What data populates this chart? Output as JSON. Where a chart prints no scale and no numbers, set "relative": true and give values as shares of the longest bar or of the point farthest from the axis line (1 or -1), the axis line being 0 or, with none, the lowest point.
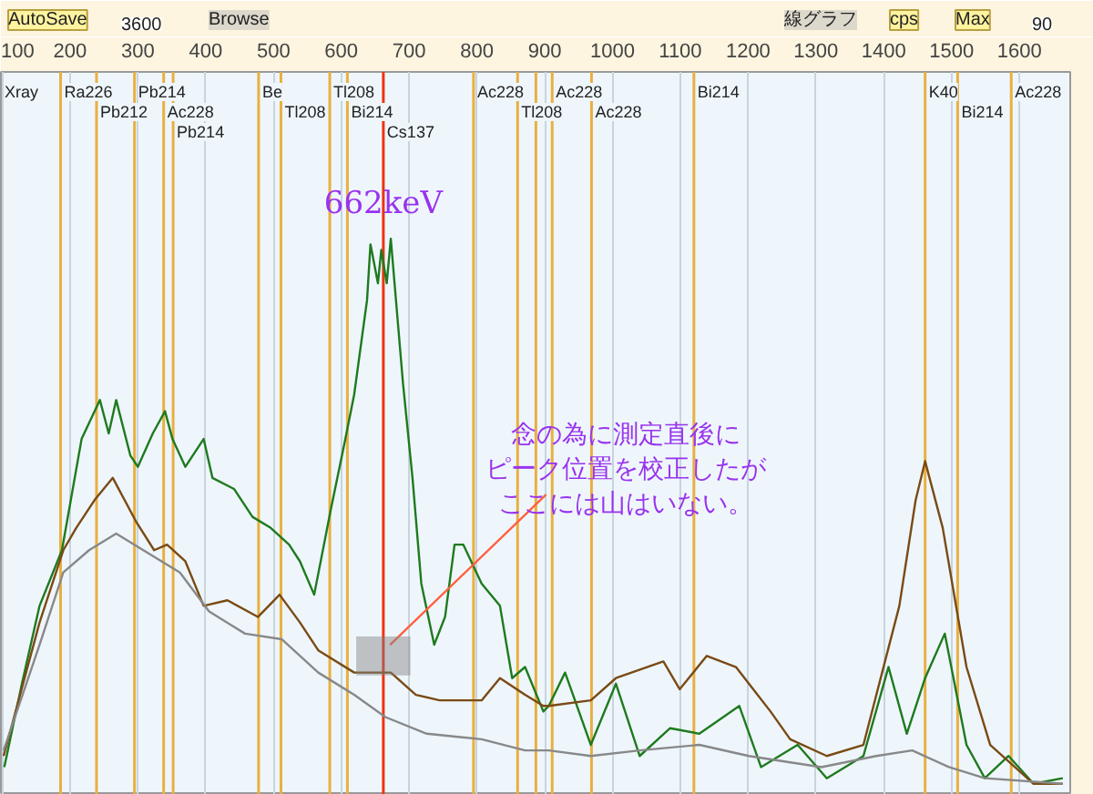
{
  "chart_data": {
    "type": "line",
    "relative": true,
    "xlim": [
      98,
      1675
    ],
    "xticks": [
      100,
      200,
      300,
      400,
      500,
      600,
      700,
      800,
      900,
      1000,
      1100,
      1200,
      1300,
      1400,
      1500,
      1600
    ],
    "grid": "x",
    "series": [
      {
        "color": "#1e7a1e",
        "x": [
          103,
          129,
          155,
          188,
          217,
          244,
          257,
          268,
          289,
          300,
          322,
          340,
          351,
          370,
          397,
          410,
          442,
          469,
          496,
          523,
          539,
          560,
          584,
          606,
          619,
          638,
          643,
          654,
          659,
          667,
          673,
          691,
          705,
          718,
          737,
          753,
          767,
          780,
          807,
          834,
          852,
          871,
          898,
          906,
          930,
          968,
          1005,
          1040,
          1085,
          1128,
          1187,
          1219,
          1273,
          1316,
          1370,
          1407,
          1434,
          1461,
          1490,
          1522,
          1549,
          1584,
          1621,
          1664
        ],
        "values": [
          0.05,
          0.2,
          0.34,
          0.44,
          0.64,
          0.71,
          0.65,
          0.71,
          0.61,
          0.59,
          0.65,
          0.69,
          0.64,
          0.59,
          0.64,
          0.57,
          0.55,
          0.5,
          0.48,
          0.45,
          0.42,
          0.36,
          0.51,
          0.64,
          0.72,
          0.89,
          0.99,
          0.92,
          0.98,
          0.92,
          1.0,
          0.74,
          0.57,
          0.38,
          0.27,
          0.32,
          0.45,
          0.45,
          0.38,
          0.34,
          0.21,
          0.23,
          0.15,
          0.16,
          0.22,
          0.09,
          0.2,
          0.07,
          0.12,
          0.11,
          0.16,
          0.05,
          0.09,
          0.03,
          0.07,
          0.23,
          0.11,
          0.21,
          0.29,
          0.09,
          0.03,
          0.07,
          0.02,
          0.03
        ]
      },
      {
        "color": "#7a4a14",
        "x": [
          102,
          155,
          190,
          209,
          236,
          263,
          298,
          324,
          343,
          370,
          397,
          432,
          477,
          509,
          539,
          566,
          619,
          673,
          710,
          745,
          807,
          834,
          871,
          898,
          906,
          968,
          1005,
          1075,
          1099,
          1139,
          1182,
          1233,
          1262,
          1316,
          1370,
          1423,
          1447,
          1461,
          1487,
          1522,
          1557,
          1621,
          1664
        ],
        "values": [
          0.07,
          0.31,
          0.44,
          0.48,
          0.53,
          0.57,
          0.49,
          0.44,
          0.45,
          0.42,
          0.34,
          0.35,
          0.32,
          0.36,
          0.31,
          0.26,
          0.22,
          0.22,
          0.18,
          0.17,
          0.17,
          0.21,
          0.18,
          0.16,
          0.16,
          0.17,
          0.21,
          0.24,
          0.19,
          0.25,
          0.23,
          0.15,
          0.1,
          0.07,
          0.09,
          0.34,
          0.53,
          0.6,
          0.48,
          0.23,
          0.09,
          0.02,
          0.02
        ]
      },
      {
        "color": "#888888",
        "x": [
          102,
          155,
          190,
          228,
          268,
          308,
          362,
          405,
          458,
          512,
          566,
          619,
          665,
          726,
          807,
          871,
          906,
          968,
          1040,
          1128,
          1201,
          1308,
          1389,
          1442,
          1496,
          1549,
          1664
        ],
        "values": [
          0.08,
          0.27,
          0.4,
          0.44,
          0.47,
          0.44,
          0.4,
          0.33,
          0.29,
          0.28,
          0.22,
          0.18,
          0.14,
          0.11,
          0.1,
          0.08,
          0.08,
          0.07,
          0.08,
          0.09,
          0.07,
          0.05,
          0.07,
          0.08,
          0.05,
          0.03,
          0.02
        ]
      }
    ],
    "ref_lines": [
      {
        "axis": "x",
        "value": 186,
        "label": "Ra226",
        "color": "#e8b040"
      },
      {
        "axis": "x",
        "value": 239,
        "label": "Pb212",
        "color": "#e8b040"
      },
      {
        "axis": "x",
        "value": 295,
        "label": "Pb214",
        "color": "#e8b040"
      },
      {
        "axis": "x",
        "value": 338,
        "label": "Ac228",
        "color": "#e8b040"
      },
      {
        "axis": "x",
        "value": 352,
        "label": "Pb214",
        "color": "#e8b040"
      },
      {
        "axis": "x",
        "value": 478,
        "label": "Be",
        "color": "#e8b040"
      },
      {
        "axis": "x",
        "value": 511,
        "label": "Tl208",
        "color": "#e8b040"
      },
      {
        "axis": "x",
        "value": 583,
        "label": "Tl208",
        "color": "#e8b040"
      },
      {
        "axis": "x",
        "value": 609,
        "label": "Bi214",
        "color": "#e8b040"
      },
      {
        "axis": "x",
        "value": 662,
        "label": "Cs137",
        "color": "#ee3311"
      },
      {
        "axis": "x",
        "value": 795,
        "label": "Ac228",
        "color": "#e8b040"
      },
      {
        "axis": "x",
        "value": 860,
        "label": "Tl208",
        "color": "#e8b040"
      },
      {
        "axis": "x",
        "value": 887,
        "label": null,
        "color": "#e8b040"
      },
      {
        "axis": "x",
        "value": 911,
        "label": "Ac228",
        "color": "#e8b040"
      },
      {
        "axis": "x",
        "value": 969,
        "label": "Ac228",
        "color": "#e8b040"
      },
      {
        "axis": "x",
        "value": 1120,
        "label": "Bi214",
        "color": "#e8b040"
      },
      {
        "axis": "x",
        "value": 1461,
        "label": "K40",
        "color": "#e8b040"
      },
      {
        "axis": "x",
        "value": 1509,
        "label": "Bi214",
        "color": "#e8b040"
      },
      {
        "axis": "x",
        "value": 1588,
        "label": "Ac228",
        "color": "#e8b040"
      }
    ],
    "bands": [
      {
        "axis": "x",
        "from": 622,
        "to": 702,
        "color": "#808080"
      }
    ],
    "annotations": [
      "Xray",
      {
        "text": "662keV",
        "x": 662
      },
      "念の為に測定直後に",
      "ピーク位置を校正したが",
      "ここには山はいない。",
      "AutoSave",
      "3600",
      "Browse",
      "線グラフ",
      "cps",
      "Max",
      "90"
    ]
  }
}
